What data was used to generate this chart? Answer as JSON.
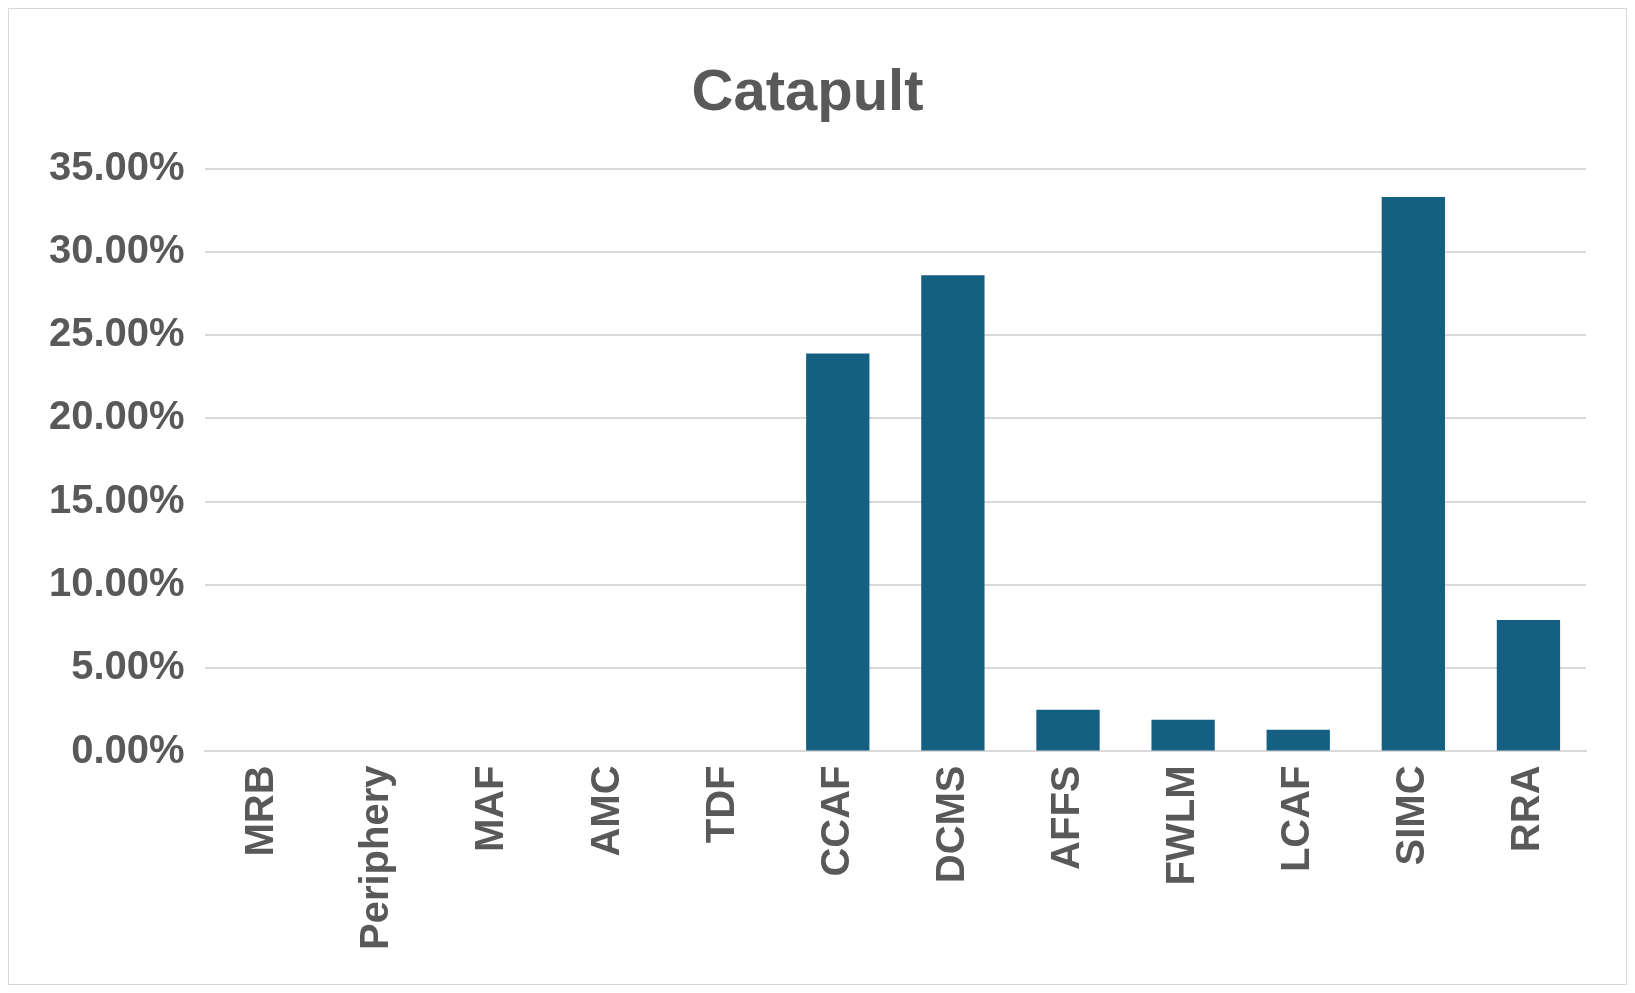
{
  "chart_data": {
    "type": "bar",
    "title": "Catapult",
    "categories": [
      "MRB",
      "Periphery",
      "MAF",
      "AMC",
      "TDF",
      "CCAF",
      "DCMS",
      "AFFS",
      "FWLM",
      "LCAF",
      "SIMC",
      "RRA"
    ],
    "values": [
      0,
      0,
      0,
      0,
      0,
      23.9,
      28.6,
      2.5,
      1.9,
      1.3,
      33.3,
      7.9
    ],
    "color": "#156082",
    "ylim": [
      0,
      35
    ],
    "yticks": [
      {
        "value": 0,
        "label": "0.00%"
      },
      {
        "value": 5,
        "label": "5.00%"
      },
      {
        "value": 10,
        "label": "10.00%"
      },
      {
        "value": 15,
        "label": "15.00%"
      },
      {
        "value": 20,
        "label": "20.00%"
      },
      {
        "value": 25,
        "label": "25.00%"
      },
      {
        "value": 30,
        "label": "30.00%"
      },
      {
        "value": 35,
        "label": "35.00%"
      }
    ],
    "grid": "y",
    "legend": false
  }
}
